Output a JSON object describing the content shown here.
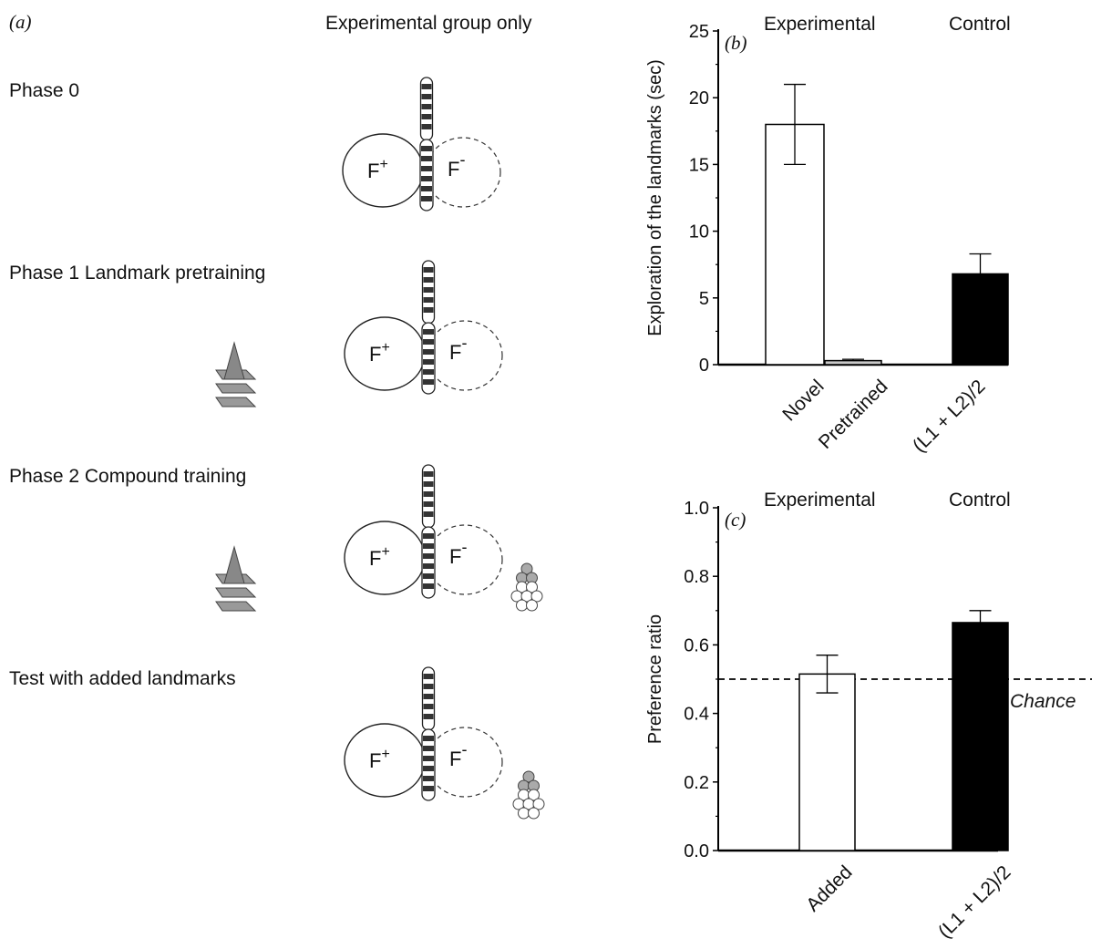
{
  "panel_a": {
    "tag": "(a)",
    "header": "Experimental group only",
    "phases": [
      {
        "label": "Phase 0"
      },
      {
        "label": "Phase 1  Landmark pretraining"
      },
      {
        "label": "Phase 2  Compound training"
      },
      {
        "label": "Test with added landmarks"
      }
    ],
    "fplus": "F",
    "fplus_sup": "+",
    "fminus": "F",
    "fminus_sup": "-"
  },
  "chart_data": [
    {
      "panel": "(b)",
      "type": "bar",
      "group_labels": [
        "Experimental",
        "Control"
      ],
      "categories": [
        "Novel",
        "Pretrained",
        "(L1 + L2)/2"
      ],
      "values": [
        18,
        0.3,
        6.8
      ],
      "errors": [
        3,
        0.1,
        1.5
      ],
      "colors": [
        "#ffffff",
        "#c8c8c8",
        "#000000"
      ],
      "ylabel": "Exploration of the landmarks (sec)",
      "ylim": [
        0,
        25
      ],
      "yticks": [
        "0",
        "5",
        "10",
        "15",
        "20",
        "25"
      ]
    },
    {
      "panel": "(c)",
      "type": "bar",
      "group_labels": [
        "Experimental",
        "Control"
      ],
      "categories": [
        "Added",
        "(L1 + L2)/2"
      ],
      "values": [
        0.515,
        0.665
      ],
      "errors": [
        0.055,
        0.035
      ],
      "colors": [
        "#ffffff",
        "#000000"
      ],
      "ylabel": "Preference ratio",
      "ylim": [
        0,
        1.0
      ],
      "yticks": [
        "0.0",
        "0.2",
        "0.4",
        "0.6",
        "0.8",
        "1.0"
      ],
      "reference_line": {
        "value": 0.5,
        "label": "Chance"
      }
    }
  ]
}
